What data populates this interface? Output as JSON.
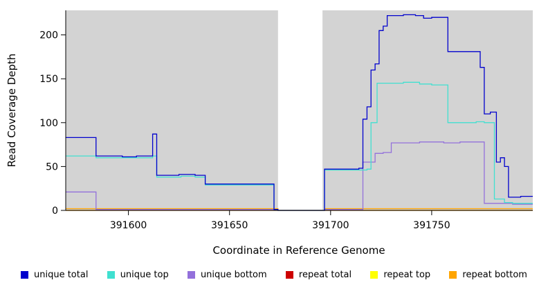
{
  "chart_data": {
    "type": "line",
    "line_style": "step",
    "title": "",
    "xlabel": "Coordinate in Reference Genome",
    "ylabel": "Read Coverage Depth",
    "xlim": [
      391569,
      391800
    ],
    "ylim": [
      0,
      228
    ],
    "xticks": [
      391600,
      391650,
      391700,
      391750
    ],
    "yticks": [
      0,
      50,
      100,
      150,
      200
    ],
    "plot_bg": "#d3d3d3",
    "gap_region": {
      "x_start": 391674,
      "x_end": 391696,
      "color": "#ffffff"
    },
    "legend_position": "bottom",
    "grid": false,
    "draw_order": [
      3,
      4,
      5,
      2,
      1,
      0
    ],
    "series": [
      {
        "name": "unique total",
        "color": "#0000cd",
        "points": [
          [
            391569,
            83
          ],
          [
            391584,
            62
          ],
          [
            391597,
            61
          ],
          [
            391604,
            62
          ],
          [
            391612,
            87
          ],
          [
            391614,
            40
          ],
          [
            391625,
            41
          ],
          [
            391633,
            40
          ],
          [
            391638,
            30
          ],
          [
            391672,
            1
          ],
          [
            391674,
            0
          ],
          [
            391697,
            47
          ],
          [
            391714,
            48
          ],
          [
            391716,
            104
          ],
          [
            391718,
            118
          ],
          [
            391720,
            160
          ],
          [
            391722,
            167
          ],
          [
            391724,
            205
          ],
          [
            391726,
            210
          ],
          [
            391728,
            222
          ],
          [
            391736,
            223
          ],
          [
            391742,
            222
          ],
          [
            391746,
            219
          ],
          [
            391750,
            220
          ],
          [
            391758,
            181
          ],
          [
            391774,
            163
          ],
          [
            391776,
            110
          ],
          [
            391779,
            112
          ],
          [
            391782,
            55
          ],
          [
            391784,
            60
          ],
          [
            391786,
            50
          ],
          [
            391788,
            15
          ],
          [
            391794,
            16
          ],
          [
            391800,
            16
          ]
        ]
      },
      {
        "name": "unique top",
        "color": "#40e0d0",
        "points": [
          [
            391569,
            62
          ],
          [
            391584,
            60
          ],
          [
            391612,
            62
          ],
          [
            391614,
            38
          ],
          [
            391626,
            39
          ],
          [
            391633,
            38
          ],
          [
            391638,
            29
          ],
          [
            391672,
            1
          ],
          [
            391674,
            0
          ],
          [
            391697,
            46
          ],
          [
            391718,
            47
          ],
          [
            391720,
            100
          ],
          [
            391723,
            145
          ],
          [
            391736,
            146
          ],
          [
            391744,
            144
          ],
          [
            391750,
            143
          ],
          [
            391758,
            100
          ],
          [
            391772,
            101
          ],
          [
            391776,
            100
          ],
          [
            391781,
            13
          ],
          [
            391786,
            9
          ],
          [
            391790,
            8
          ],
          [
            391800,
            8
          ]
        ]
      },
      {
        "name": "unique bottom",
        "color": "#9370db",
        "points": [
          [
            391569,
            21
          ],
          [
            391584,
            1
          ],
          [
            391672,
            1
          ],
          [
            391674,
            0
          ],
          [
            391697,
            1
          ],
          [
            391714,
            1
          ],
          [
            391716,
            55
          ],
          [
            391722,
            65
          ],
          [
            391726,
            66
          ],
          [
            391730,
            77
          ],
          [
            391744,
            78
          ],
          [
            391756,
            77
          ],
          [
            391764,
            78
          ],
          [
            391776,
            8
          ],
          [
            391790,
            7
          ],
          [
            391800,
            7
          ]
        ]
      },
      {
        "name": "repeat total",
        "color": "#cd0000",
        "points": [
          [
            391569,
            0
          ],
          [
            391800,
            0
          ]
        ]
      },
      {
        "name": "repeat top",
        "color": "#ffff00",
        "points": [
          [
            391569,
            0
          ],
          [
            391800,
            0
          ]
        ]
      },
      {
        "name": "repeat bottom",
        "color": "#ffa500",
        "points": [
          [
            391569,
            2
          ],
          [
            391674,
            0
          ],
          [
            391697,
            2
          ],
          [
            391800,
            2
          ]
        ]
      }
    ]
  }
}
